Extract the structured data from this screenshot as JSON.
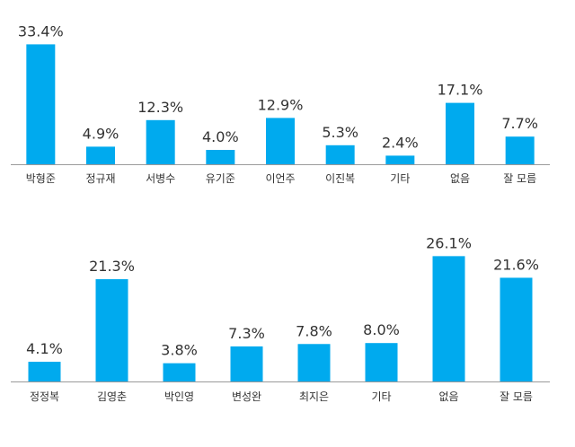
{
  "colors": {
    "bar": "#00aaee",
    "axis": "#9a9a9a",
    "text": "#333333"
  },
  "chart_data": [
    {
      "type": "bar",
      "title": "",
      "xlabel": "",
      "ylabel": "",
      "ylim": [
        0,
        33.4
      ],
      "grid": false,
      "categories": [
        "박형준",
        "정규재",
        "서병수",
        "유기준",
        "이언주",
        "이진복",
        "기타",
        "없음",
        "잘 모름"
      ],
      "values": [
        33.4,
        4.9,
        12.3,
        4.0,
        12.9,
        5.3,
        2.4,
        17.1,
        7.7
      ],
      "value_labels": [
        "33.4%",
        "4.9%",
        "12.3%",
        "4.0%",
        "12.9%",
        "5.3%",
        "2.4%",
        "17.1%",
        "7.7%"
      ]
    },
    {
      "type": "bar",
      "title": "",
      "xlabel": "",
      "ylabel": "",
      "ylim": [
        0,
        33.4
      ],
      "grid": false,
      "categories": [
        "정정복",
        "김영춘",
        "박인영",
        "변성완",
        "최지은",
        "기타",
        "없음",
        "잘 모름"
      ],
      "values": [
        4.1,
        21.3,
        3.8,
        7.3,
        7.8,
        8.0,
        26.1,
        21.6
      ],
      "value_labels": [
        "4.1%",
        "21.3%",
        "3.8%",
        "7.3%",
        "7.8%",
        "8.0%",
        "26.1%",
        "21.6%"
      ]
    }
  ]
}
